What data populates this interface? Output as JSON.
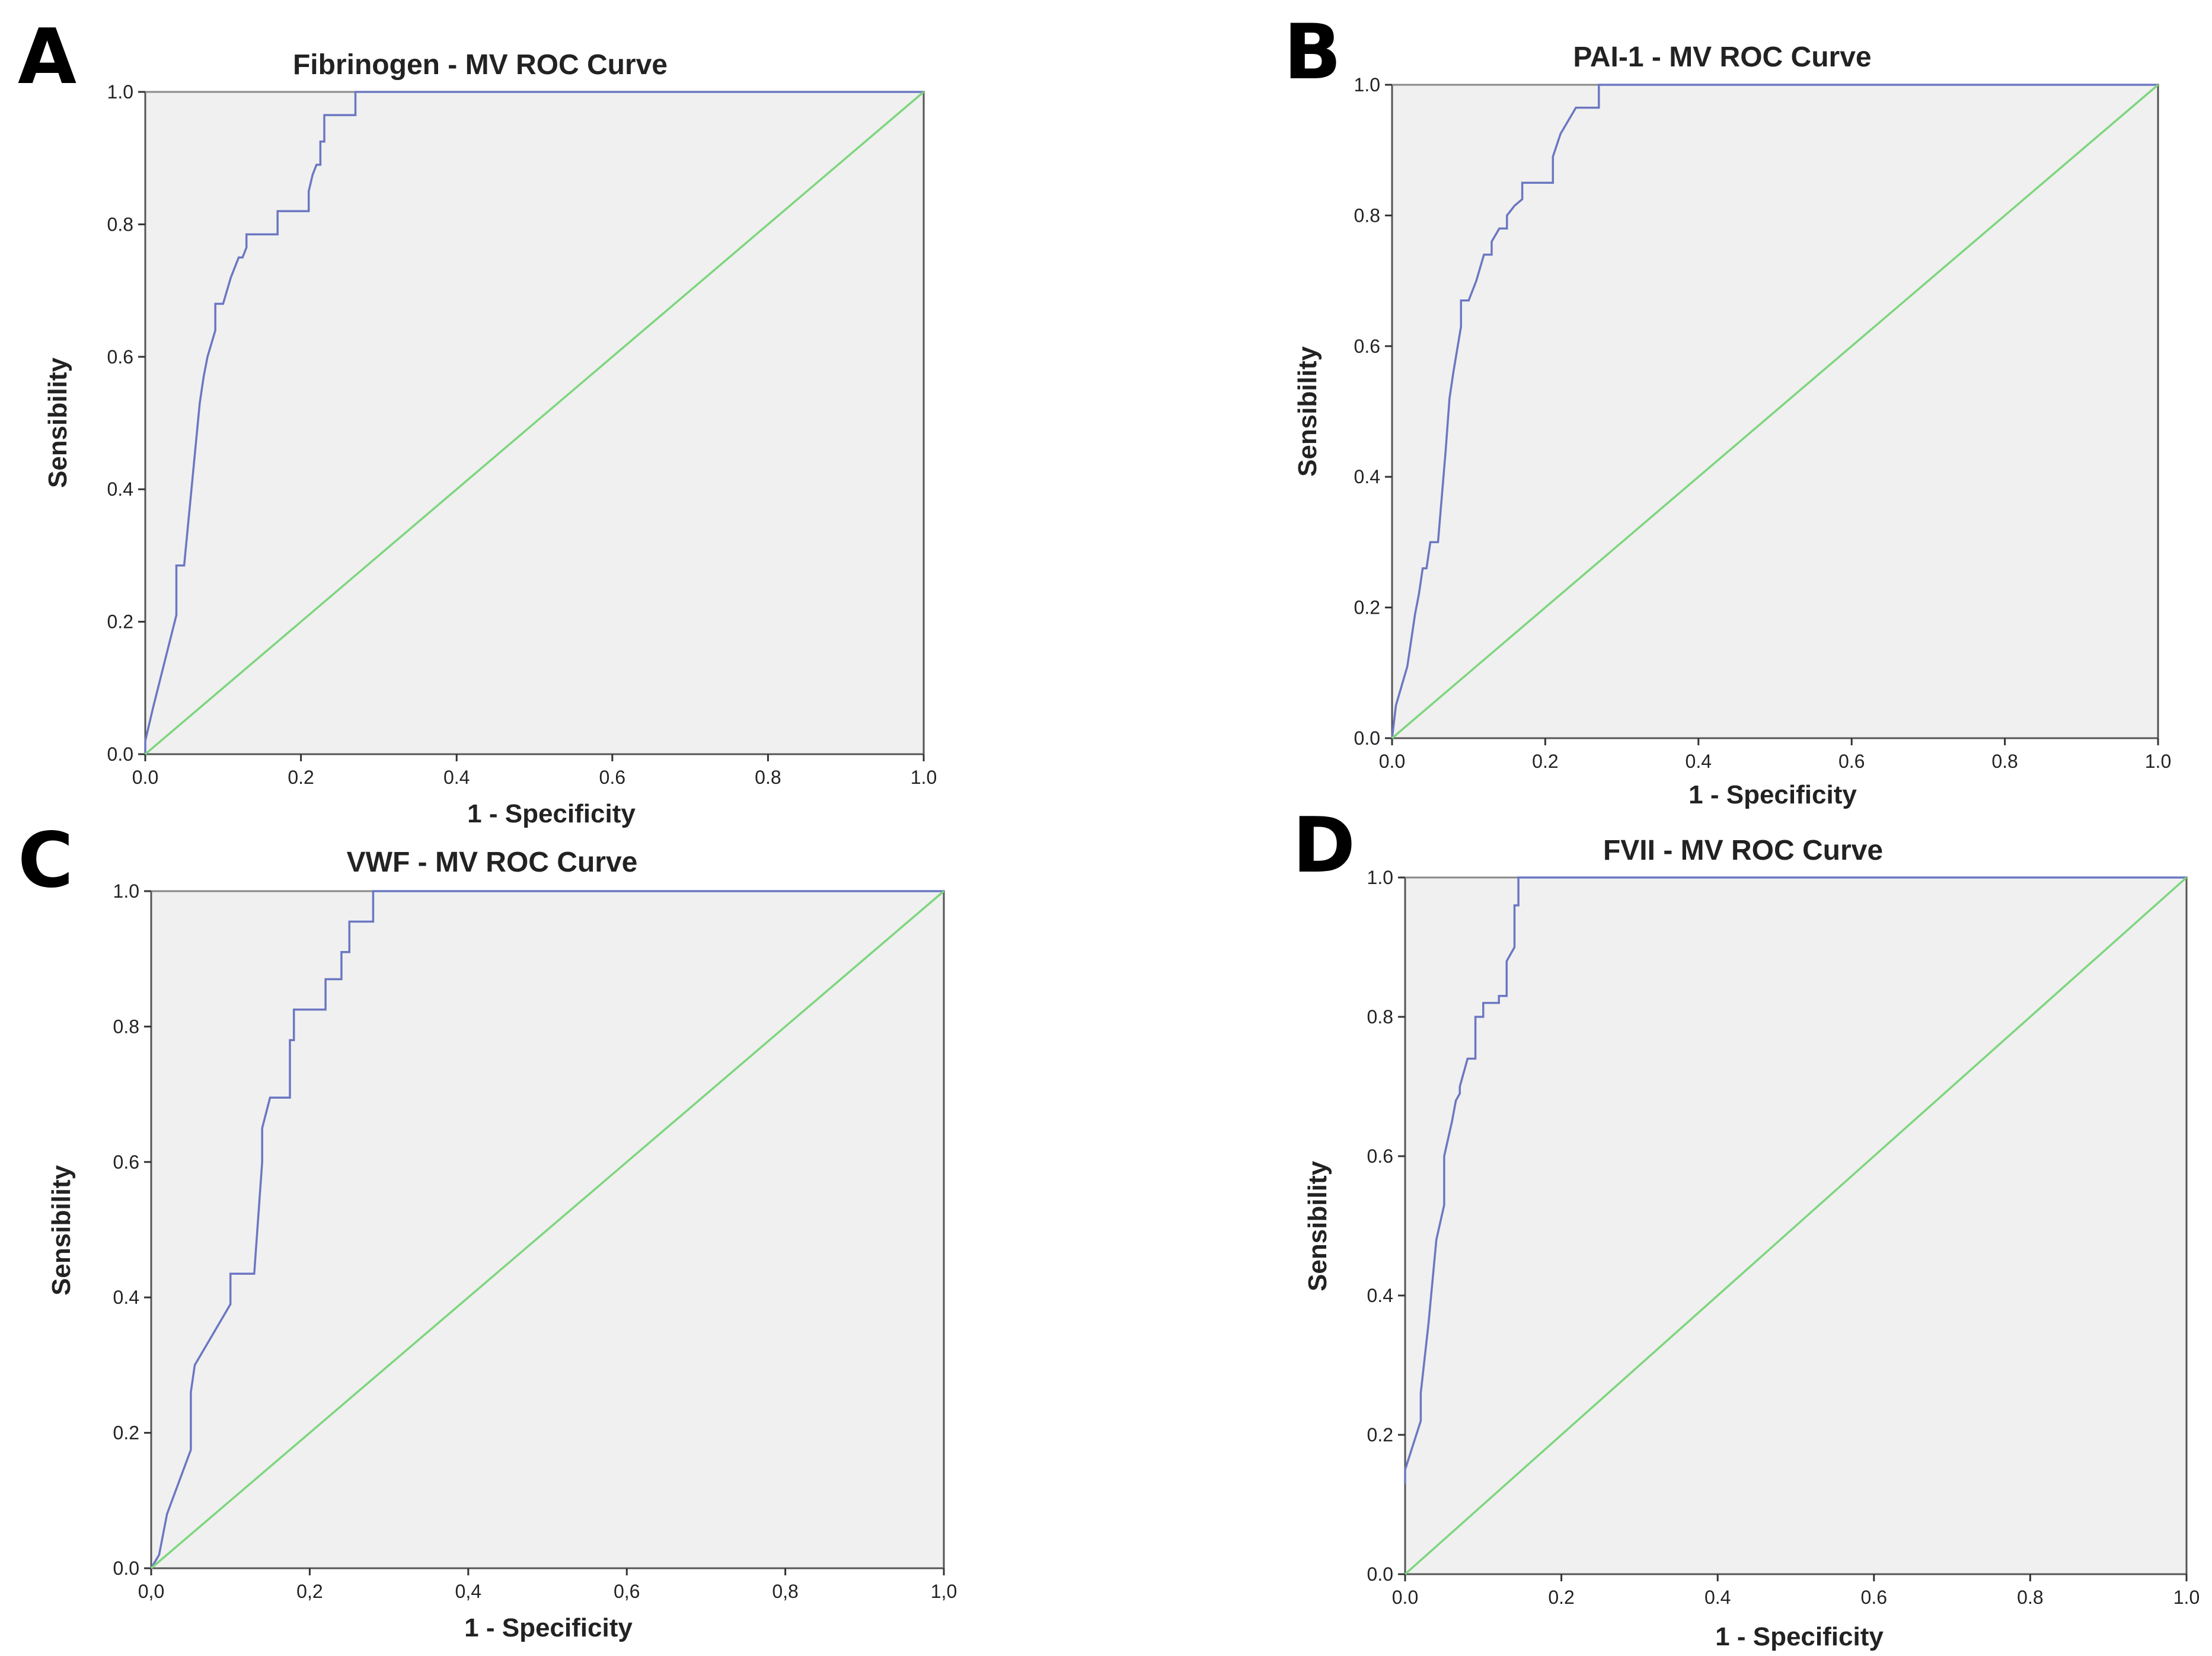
{
  "figure": {
    "panels": [
      {
        "letter": "A",
        "title": "Fibrinogen - MV ROC Curve",
        "xlabel": "1 - Specificity",
        "ylabel": "Sensibility",
        "xticks": [
          "0.0",
          "0.2",
          "0.4",
          "0.6",
          "0.8",
          "1.0"
        ],
        "yticks": [
          "0.0",
          "0.2",
          "0.4",
          "0.6",
          "0.8",
          "1.0"
        ]
      },
      {
        "letter": "B",
        "title": "PAI-1 - MV ROC Curve",
        "xlabel": "1 - Specificity",
        "ylabel": "Sensibility",
        "xticks": [
          "0.0",
          "0.2",
          "0.4",
          "0.6",
          "0.8",
          "1.0"
        ],
        "yticks": [
          "0.0",
          "0.2",
          "0.4",
          "0.6",
          "0.8",
          "1.0"
        ]
      },
      {
        "letter": "C",
        "title": "VWF - MV ROC Curve",
        "xlabel": "1 - Specificity",
        "ylabel": "Sensibility",
        "xticks": [
          "0,0",
          "0,2",
          "0,4",
          "0,6",
          "0,8",
          "1,0"
        ],
        "yticks": [
          "0.0",
          "0.2",
          "0.4",
          "0.6",
          "0.8",
          "1.0"
        ]
      },
      {
        "letter": "D",
        "title": "FVII - MV ROC Curve",
        "xlabel": "1 - Specificity",
        "ylabel": "Sensibility",
        "xticks": [
          "0.0",
          "0.2",
          "0.4",
          "0.6",
          "0.8",
          "1.0"
        ],
        "yticks": [
          "0.0",
          "0.2",
          "0.4",
          "0.6",
          "0.8",
          "1.0"
        ]
      }
    ],
    "colors": {
      "roc": "#6b77c2",
      "reference": "#7dd67d",
      "plot_background": "#f0f0f0"
    }
  },
  "chart_data": [
    {
      "type": "line",
      "title": "Fibrinogen - MV ROC Curve",
      "xlabel": "1 - Specificity",
      "ylabel": "Sensibility",
      "xlim": [
        0,
        1
      ],
      "ylim": [
        0,
        1
      ],
      "series": [
        {
          "name": "ROC",
          "x": [
            0,
            0,
            0.01,
            0.04,
            0.04,
            0.05,
            0.07,
            0.075,
            0.08,
            0.09,
            0.09,
            0.1,
            0.11,
            0.12,
            0.125,
            0.13,
            0.13,
            0.17,
            0.17,
            0.21,
            0.21,
            0.215,
            0.22,
            0.225,
            0.225,
            0.23,
            0.23,
            0.25,
            0.26,
            0.27,
            0.27,
            1
          ],
          "y": [
            0,
            0.02,
            0.07,
            0.21,
            0.285,
            0.285,
            0.53,
            0.57,
            0.6,
            0.64,
            0.68,
            0.68,
            0.72,
            0.75,
            0.75,
            0.765,
            0.785,
            0.785,
            0.82,
            0.82,
            0.85,
            0.875,
            0.89,
            0.89,
            0.925,
            0.925,
            0.965,
            0.965,
            0.965,
            0.965,
            1,
            1
          ]
        },
        {
          "name": "Reference Line",
          "x": [
            0,
            1
          ],
          "y": [
            0,
            1
          ]
        }
      ]
    },
    {
      "type": "line",
      "title": "PAI-1 - MV ROC Curve",
      "xlabel": "1 - Specificity",
      "ylabel": "Sensibility",
      "xlim": [
        0,
        1
      ],
      "ylim": [
        0,
        1
      ],
      "series": [
        {
          "name": "ROC",
          "x": [
            0,
            0.005,
            0.01,
            0.02,
            0.03,
            0.035,
            0.04,
            0.045,
            0.05,
            0.06,
            0.07,
            0.075,
            0.08,
            0.08,
            0.09,
            0.09,
            0.1,
            0.11,
            0.12,
            0.13,
            0.13,
            0.14,
            0.15,
            0.15,
            0.16,
            0.16,
            0.17,
            0.17,
            0.21,
            0.21,
            0.22,
            0.22,
            0.24,
            0.24,
            0.27,
            0.27,
            1
          ],
          "y": [
            0,
            0.05,
            0.07,
            0.11,
            0.19,
            0.22,
            0.26,
            0.26,
            0.3,
            0.3,
            0.44,
            0.52,
            0.56,
            0.56,
            0.63,
            0.67,
            0.67,
            0.7,
            0.74,
            0.74,
            0.76,
            0.78,
            0.78,
            0.8,
            0.815,
            0.815,
            0.825,
            0.85,
            0.85,
            0.89,
            0.925,
            0.925,
            0.965,
            0.965,
            0.965,
            1,
            1
          ]
        },
        {
          "name": "Reference Line",
          "x": [
            0,
            1
          ],
          "y": [
            0,
            1
          ]
        }
      ]
    },
    {
      "type": "line",
      "title": "VWF - MV ROC Curve",
      "xlabel": "1 - Specificity",
      "ylabel": "Sensibility",
      "xlim": [
        0,
        1
      ],
      "ylim": [
        0,
        1
      ],
      "series": [
        {
          "name": "ROC",
          "x": [
            0,
            0.01,
            0.02,
            0.05,
            0.05,
            0.055,
            0.1,
            0.1,
            0.13,
            0.14,
            0.14,
            0.15,
            0.15,
            0.175,
            0.175,
            0.18,
            0.18,
            0.22,
            0.22,
            0.24,
            0.24,
            0.25,
            0.25,
            0.28,
            0.28,
            1
          ],
          "y": [
            0,
            0.02,
            0.08,
            0.175,
            0.26,
            0.3,
            0.39,
            0.435,
            0.435,
            0.6,
            0.65,
            0.695,
            0.695,
            0.695,
            0.78,
            0.78,
            0.825,
            0.825,
            0.87,
            0.87,
            0.91,
            0.91,
            0.955,
            0.955,
            1,
            1
          ]
        },
        {
          "name": "Reference Line",
          "x": [
            0,
            1
          ],
          "y": [
            0,
            1
          ]
        }
      ]
    },
    {
      "type": "line",
      "title": "FVII - MV ROC Curve",
      "xlabel": "1 - Specificity",
      "ylabel": "Sensibility",
      "xlim": [
        0,
        1
      ],
      "ylim": [
        0,
        1
      ],
      "series": [
        {
          "name": "ROC",
          "x": [
            0,
            0,
            0.02,
            0.02,
            0.03,
            0.04,
            0.05,
            0.05,
            0.06,
            0.065,
            0.07,
            0.07,
            0.08,
            0.09,
            0.09,
            0.1,
            0.1,
            0.12,
            0.12,
            0.13,
            0.13,
            0.14,
            0.14,
            0.145,
            0.145,
            1
          ],
          "y": [
            0.13,
            0.15,
            0.22,
            0.26,
            0.36,
            0.48,
            0.53,
            0.6,
            0.65,
            0.68,
            0.69,
            0.7,
            0.74,
            0.74,
            0.8,
            0.8,
            0.82,
            0.82,
            0.83,
            0.83,
            0.88,
            0.9,
            0.96,
            0.96,
            1,
            1
          ]
        },
        {
          "name": "Reference Line",
          "x": [
            0,
            1
          ],
          "y": [
            0,
            1
          ]
        }
      ]
    }
  ]
}
